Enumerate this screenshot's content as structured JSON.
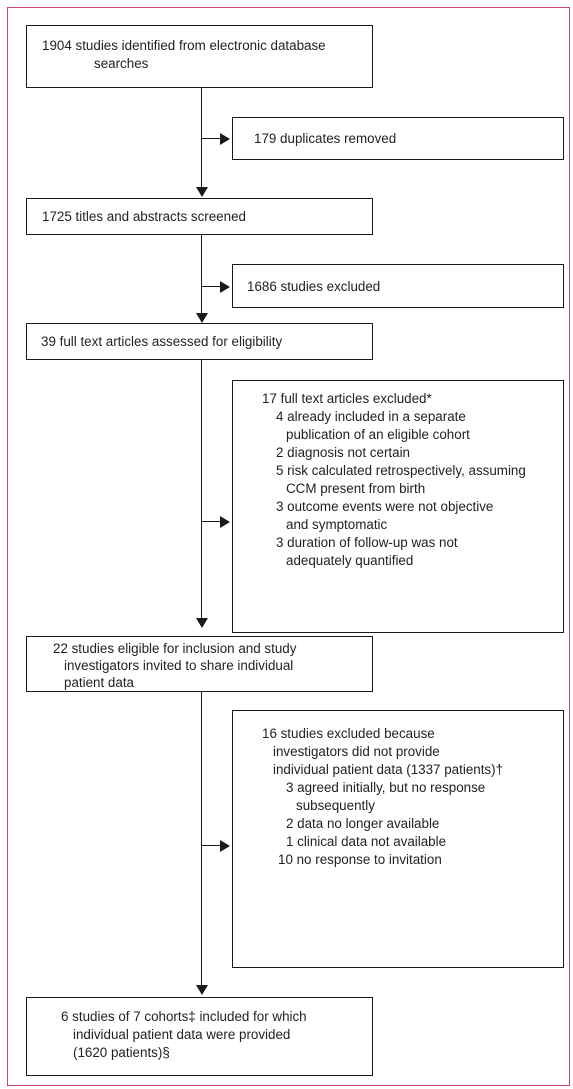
{
  "flow": {
    "identified": {
      "lines": [
        "1904 studies identified from electronic database",
        "searches"
      ]
    },
    "duplicates": {
      "lines": [
        "179 duplicates removed"
      ]
    },
    "screened": {
      "lines": [
        "1725 titles and abstracts screened"
      ]
    },
    "excluded_screen": {
      "lines": [
        "1686 studies excluded"
      ]
    },
    "fulltext": {
      "lines": [
        "39 full text articles assessed for eligibility"
      ]
    },
    "fulltext_excluded": {
      "header": "17 full text articles excluded*",
      "lines": [
        "4 already included in a separate",
        "publication of an eligible cohort",
        "2 diagnosis not certain",
        "5 risk calculated retrospectively, assuming",
        "CCM present from birth",
        "3 outcome events were not objective",
        "and symptomatic",
        "3 duration of follow-up was not",
        "adequately quantified"
      ]
    },
    "eligible": {
      "lines": [
        "22 studies eligible for inclusion and study",
        "investigators invited to share individual",
        "patient data"
      ]
    },
    "ipd_excluded": {
      "lines": [
        "16 studies excluded because",
        "investigators did not provide",
        "individual patient data (1337 patients)†",
        "3 agreed initially, but no response",
        "subsequently",
        "2 data no longer available",
        "1 clinical data not available",
        "10 no response to invitation"
      ]
    },
    "included": {
      "lines": [
        "6 studies of 7 cohorts‡ included for which",
        "individual patient data were provided",
        "(1620 patients)§"
      ]
    }
  },
  "colors": {
    "frame": "#c8426e",
    "line": "#1a1a1a"
  }
}
